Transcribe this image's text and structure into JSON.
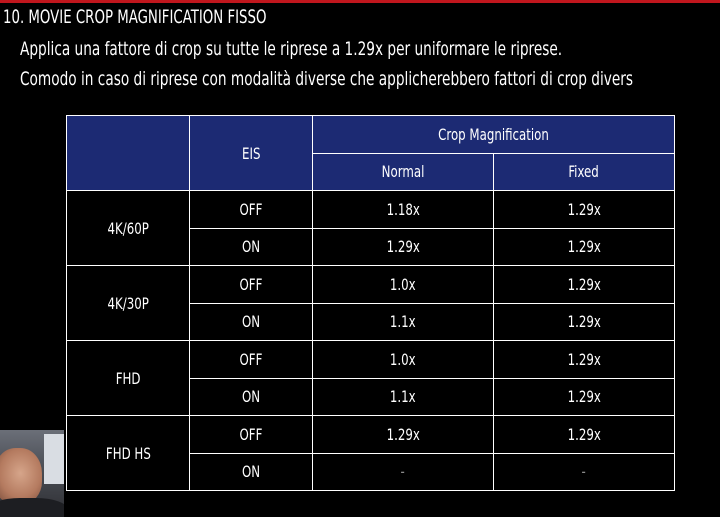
{
  "slide": {
    "title": "10. MOVIE CROP MAGNIFICATION FISSO",
    "description_line1": "Applica una fattore di crop su tutte le riprese a 1.29x per uniformare le riprese.",
    "description_line2": "Comodo in caso di riprese con modalità diverse che applicherebbero fattori di crop divers"
  },
  "table": {
    "header_eis": "EIS",
    "header_crop": "Crop Magnification",
    "header_normal": "Normal",
    "header_fixed": "Fixed",
    "groups": [
      {
        "mode": "4K/60P",
        "rows": [
          {
            "eis": "OFF",
            "normal": "1.18x",
            "fixed": "1.29x"
          },
          {
            "eis": "ON",
            "normal": "1.29x",
            "fixed": "1.29x"
          }
        ]
      },
      {
        "mode": "4K/30P",
        "rows": [
          {
            "eis": "OFF",
            "normal": "1.0x",
            "fixed": "1.29x"
          },
          {
            "eis": "ON",
            "normal": "1.1x",
            "fixed": "1.29x"
          }
        ]
      },
      {
        "mode": "FHD",
        "rows": [
          {
            "eis": "OFF",
            "normal": "1.0x",
            "fixed": "1.29x"
          },
          {
            "eis": "ON",
            "normal": "1.1x",
            "fixed": "1.29x"
          }
        ]
      },
      {
        "mode": "FHD HS",
        "rows": [
          {
            "eis": "OFF",
            "normal": "1.29x",
            "fixed": "1.29x"
          },
          {
            "eis": "ON",
            "normal": "-",
            "fixed": "-"
          }
        ]
      }
    ]
  },
  "colors": {
    "accent_line": "#c0161d",
    "header_fill": "#1c2a73",
    "background": "#000000"
  }
}
